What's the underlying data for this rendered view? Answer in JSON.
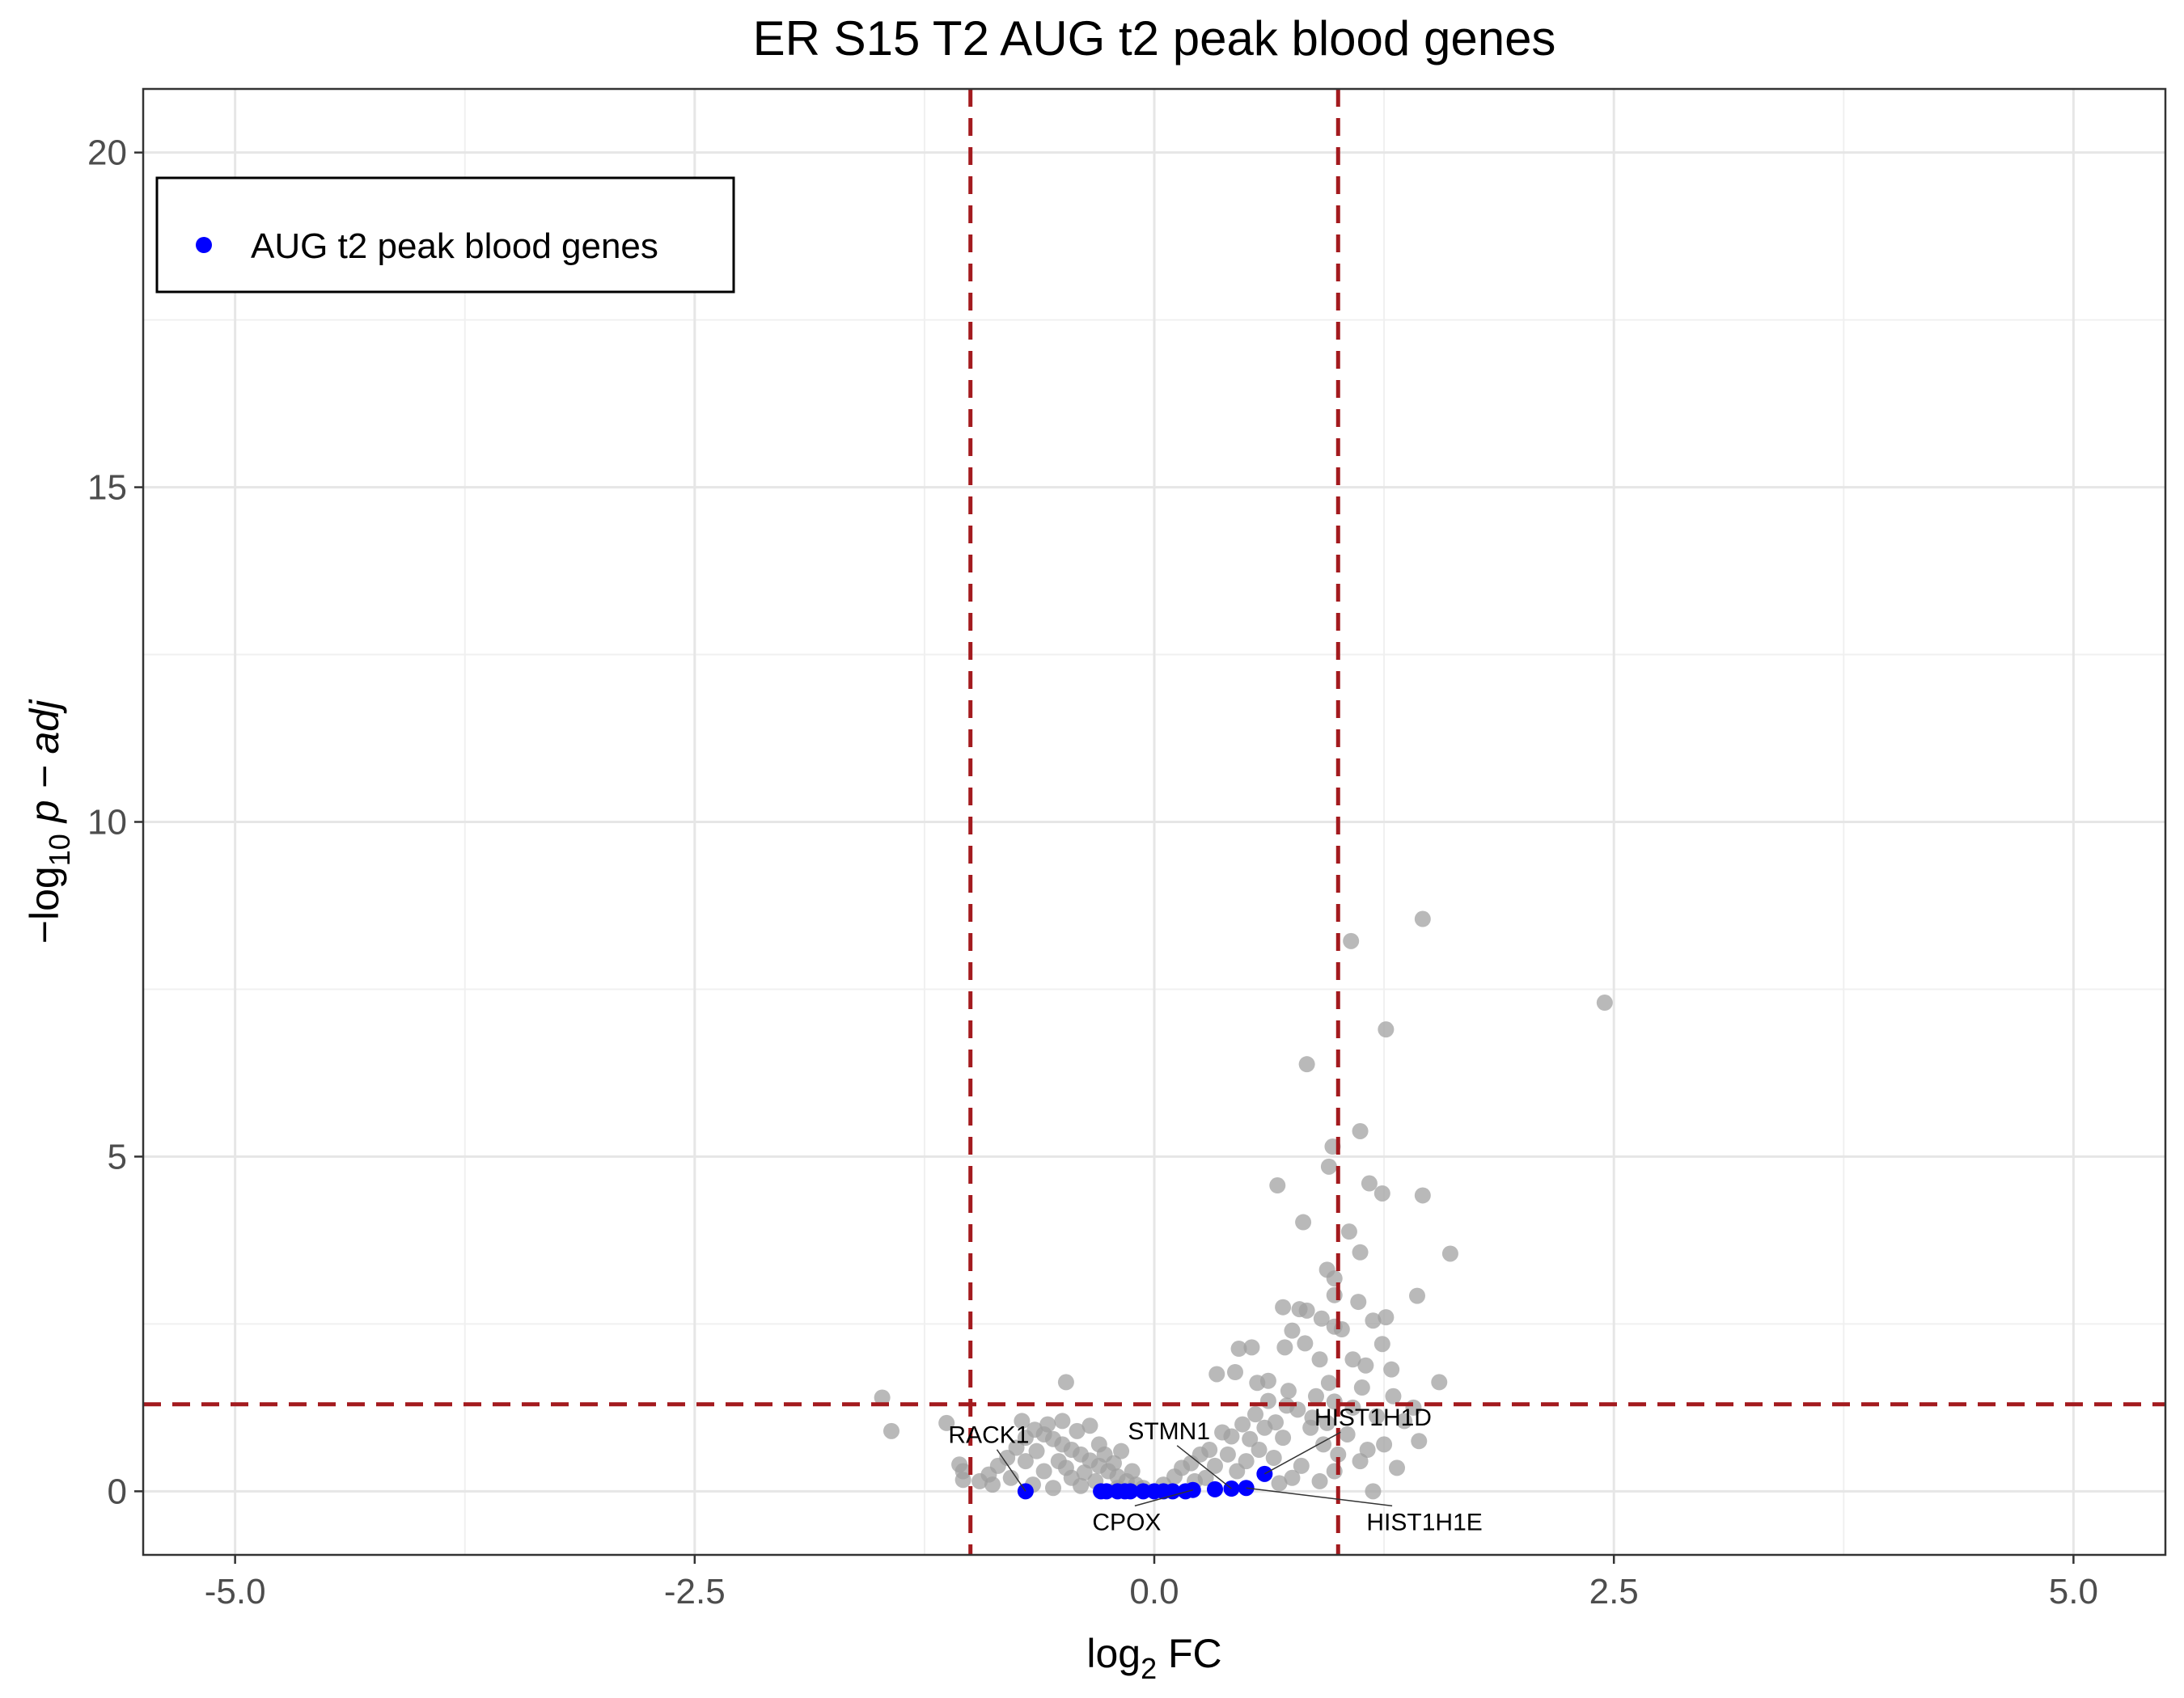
{
  "chart_data": {
    "type": "scatter",
    "title": "ER S15 T2 AUG t2 peak blood genes",
    "xlabel": {
      "prefix": "log",
      "sub": "2",
      "suffix": " FC"
    },
    "ylabel": {
      "prefix": "−log",
      "sub": "10",
      "italic": "p − adj"
    },
    "xlim": [
      -5.5,
      5.5
    ],
    "ylim": [
      -0.95,
      20.95
    ],
    "x_ticks": [
      -5,
      -2.5,
      0,
      2.5,
      5
    ],
    "x_tick_labels": [
      "-5.0",
      "-2.5",
      "0.0",
      "2.5",
      "5.0"
    ],
    "y_ticks": [
      0,
      5,
      10,
      15,
      20
    ],
    "y_tick_labels": [
      "0",
      "5",
      "10",
      "15",
      "20"
    ],
    "grid": true,
    "thresholds": {
      "log2fc": [
        -1,
        1
      ],
      "neg_log10_padj": 1.3
    },
    "legend": {
      "position": "top-left",
      "entries": [
        "AUG t2 peak blood genes"
      ]
    },
    "colors": {
      "background_genes": "#9e9e9e",
      "highlight": "#0000ff",
      "threshold_line": "#a31a1e",
      "grid": "#e6e6e6"
    },
    "series": [
      {
        "role": "background",
        "points": [
          [
            -1.48,
            1.4
          ],
          [
            -1.43,
            0.9
          ],
          [
            -1.13,
            1.02
          ],
          [
            -1.06,
            0.4
          ],
          [
            -1.04,
            0.17
          ],
          [
            -1.04,
            0.3
          ],
          [
            -0.48,
            1.63
          ],
          [
            -0.35,
            0.98
          ],
          [
            2.45,
            7.3
          ],
          [
            1.46,
            8.55
          ],
          [
            1.07,
            8.22
          ],
          [
            1.26,
            6.9
          ],
          [
            0.83,
            6.38
          ],
          [
            1.12,
            5.38
          ],
          [
            0.97,
            5.15
          ],
          [
            0.95,
            4.85
          ],
          [
            0.67,
            4.57
          ],
          [
            1.17,
            4.6
          ],
          [
            1.24,
            4.45
          ],
          [
            1.46,
            4.42
          ],
          [
            0.81,
            4.02
          ],
          [
            1.06,
            3.88
          ],
          [
            1.61,
            3.55
          ],
          [
            1.12,
            3.57
          ],
          [
            0.94,
            3.31
          ],
          [
            0.98,
            3.18
          ],
          [
            1.43,
            2.92
          ],
          [
            0.98,
            2.93
          ],
          [
            1.11,
            2.83
          ],
          [
            0.7,
            2.75
          ],
          [
            0.79,
            2.72
          ],
          [
            0.83,
            2.7
          ],
          [
            0.91,
            2.58
          ],
          [
            1.19,
            2.55
          ],
          [
            1.26,
            2.6
          ],
          [
            0.98,
            2.46
          ],
          [
            1.02,
            2.42
          ],
          [
            0.75,
            2.4
          ],
          [
            0.82,
            2.21
          ],
          [
            0.53,
            2.15
          ],
          [
            0.46,
            2.13
          ],
          [
            0.71,
            2.15
          ],
          [
            1.24,
            2.2
          ],
          [
            1.08,
            1.97
          ],
          [
            1.15,
            1.88
          ],
          [
            0.9,
            1.97
          ],
          [
            0.34,
            1.75
          ],
          [
            0.44,
            1.78
          ],
          [
            1.55,
            1.63
          ],
          [
            1.29,
            1.82
          ],
          [
            0.62,
            1.65
          ],
          [
            0.95,
            1.62
          ],
          [
            1.13,
            1.55
          ],
          [
            0.56,
            1.62
          ],
          [
            1.36,
            1.05
          ],
          [
            1.44,
            0.75
          ],
          [
            1.41,
            1.25
          ],
          [
            1.3,
            1.42
          ],
          [
            1.21,
            1.12
          ],
          [
            1.16,
            0.62
          ],
          [
            1.19,
            0.0
          ],
          [
            0.98,
            1.34
          ],
          [
            0.88,
            1.42
          ],
          [
            0.78,
            1.22
          ],
          [
            0.72,
            1.28
          ],
          [
            0.66,
            1.03
          ],
          [
            0.6,
            0.95
          ],
          [
            0.55,
            1.15
          ],
          [
            0.48,
            1.0
          ],
          [
            0.42,
            0.82
          ],
          [
            0.37,
            0.88
          ],
          [
            0.3,
            0.62
          ],
          [
            0.25,
            0.55
          ],
          [
            0.2,
            0.42
          ],
          [
            0.15,
            0.35
          ],
          [
            0.11,
            0.22
          ],
          [
            0.05,
            0.1
          ],
          [
            0.7,
            0.8
          ],
          [
            0.85,
            0.95
          ],
          [
            0.92,
            0.7
          ],
          [
            1.05,
            0.85
          ],
          [
            1.12,
            0.45
          ],
          [
            0.98,
            0.3
          ],
          [
            0.8,
            0.38
          ],
          [
            0.65,
            0.5
          ],
          [
            0.57,
            0.62
          ],
          [
            0.5,
            0.45
          ],
          [
            0.45,
            0.3
          ],
          [
            0.4,
            0.55
          ],
          [
            0.33,
            0.38
          ],
          [
            0.28,
            0.2
          ],
          [
            0.22,
            0.15
          ],
          [
            0.75,
            0.2
          ],
          [
            0.68,
            0.12
          ],
          [
            0.9,
            0.15
          ],
          [
            1.0,
            0.55
          ],
          [
            1.25,
            0.7
          ],
          [
            1.32,
            0.35
          ],
          [
            0.62,
            1.35
          ],
          [
            0.73,
            1.5
          ],
          [
            0.86,
            1.1
          ],
          [
            1.08,
            1.25
          ],
          [
            0.94,
            1.02
          ],
          [
            0.52,
            0.78
          ],
          [
            -0.06,
            0.05
          ],
          [
            -0.1,
            0.1
          ],
          [
            -0.15,
            0.15
          ],
          [
            -0.2,
            0.22
          ],
          [
            -0.25,
            0.3
          ],
          [
            -0.3,
            0.38
          ],
          [
            -0.35,
            0.46
          ],
          [
            -0.4,
            0.55
          ],
          [
            -0.45,
            0.62
          ],
          [
            -0.5,
            0.7
          ],
          [
            -0.55,
            0.78
          ],
          [
            -0.6,
            0.85
          ],
          [
            -0.65,
            0.92
          ],
          [
            -0.7,
            0.8
          ],
          [
            -0.75,
            0.65
          ],
          [
            -0.8,
            0.5
          ],
          [
            -0.85,
            0.38
          ],
          [
            -0.9,
            0.25
          ],
          [
            -0.95,
            0.15
          ],
          [
            -0.6,
            0.3
          ],
          [
            -0.52,
            0.45
          ],
          [
            -0.45,
            0.2
          ],
          [
            -0.38,
            0.28
          ],
          [
            -0.32,
            0.15
          ],
          [
            -0.27,
            0.55
          ],
          [
            -0.22,
            0.42
          ],
          [
            -0.58,
            1.0
          ],
          [
            -0.5,
            1.05
          ],
          [
            -0.42,
            0.9
          ],
          [
            -0.7,
            0.45
          ],
          [
            -0.78,
            0.2
          ],
          [
            -0.66,
            0.1
          ],
          [
            -0.55,
            0.05
          ],
          [
            -0.4,
            0.08
          ],
          [
            -0.2,
            0.05
          ],
          [
            -0.12,
            0.3
          ],
          [
            -0.88,
            0.1
          ],
          [
            -0.72,
            1.05
          ],
          [
            -0.64,
            0.6
          ],
          [
            -0.48,
            0.35
          ],
          [
            -0.3,
            0.7
          ],
          [
            -0.18,
            0.6
          ]
        ]
      },
      {
        "name": "AUG t2 peak blood genes",
        "role": "highlight",
        "points": [
          [
            -0.7,
            0.0
          ],
          [
            -0.29,
            0.0
          ],
          [
            -0.26,
            0.0
          ],
          [
            -0.2,
            0.0
          ],
          [
            -0.16,
            0.0
          ],
          [
            -0.13,
            0.0
          ],
          [
            -0.06,
            0.0
          ],
          [
            0.0,
            0.0
          ],
          [
            0.05,
            0.0
          ],
          [
            0.1,
            0.0
          ],
          [
            0.17,
            0.0
          ],
          [
            0.21,
            0.02
          ],
          [
            0.33,
            0.03
          ],
          [
            0.42,
            0.04
          ],
          [
            0.5,
            0.05
          ],
          [
            0.6,
            0.26
          ]
        ]
      }
    ],
    "annotations": [
      {
        "text": "RACK1",
        "x": -0.7,
        "y": 0.0,
        "label_x": -0.9,
        "label_y": 0.72
      },
      {
        "text": "STMN1",
        "x": 0.42,
        "y": 0.04,
        "label_x": 0.08,
        "label_y": 0.78
      },
      {
        "text": "HIST1H1D",
        "x": 0.6,
        "y": 0.26,
        "label_x": 1.19,
        "label_y": 0.98
      },
      {
        "text": "CPOX",
        "x": 0.21,
        "y": 0.02,
        "label_x": -0.15,
        "label_y": -0.58
      },
      {
        "text": "HIST1H1E",
        "x": 0.5,
        "y": 0.05,
        "label_x": 1.47,
        "label_y": -0.58
      }
    ]
  }
}
